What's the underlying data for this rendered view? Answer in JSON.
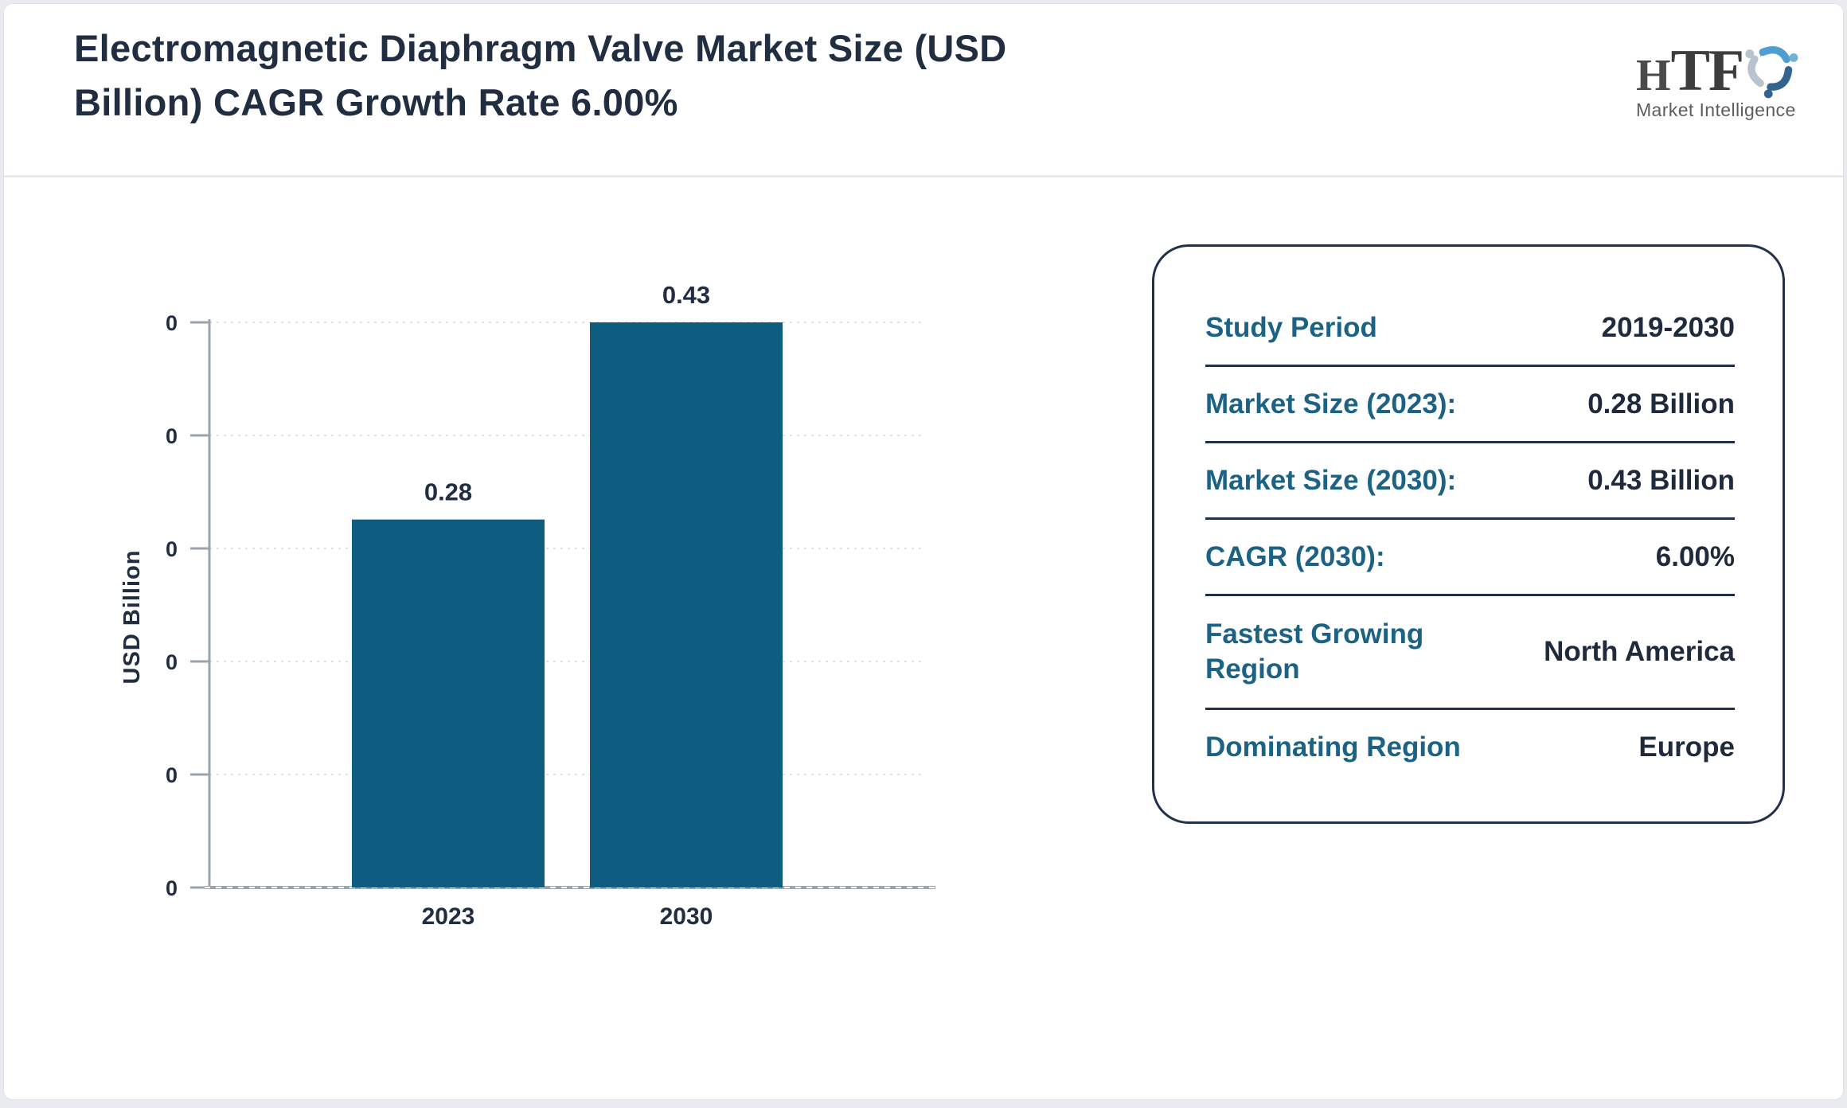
{
  "header": {
    "title": "Electromagnetic Diaphragm Valve Market Size (USD Billion) CAGR Growth Rate 6.00%"
  },
  "logo": {
    "wordmark_h": "H",
    "wordmark_tf": "TF",
    "tagline": "Market Intelligence",
    "swirl_colors": [
      "#4d9fd1",
      "#33638e",
      "#b9c3cd"
    ]
  },
  "chart_data": {
    "type": "bar",
    "title": "",
    "categories": [
      "2023",
      "2030"
    ],
    "values": [
      0.28,
      0.43
    ],
    "bar_value_labels": [
      "0.28",
      "0.43"
    ],
    "xlabel": "",
    "ylabel": "USD Billion",
    "ylim": [
      0,
      0.43
    ],
    "ytick_labels": [
      "0",
      "0",
      "0",
      "0",
      "0",
      "0"
    ],
    "grid": "horizontal-dashed",
    "legend": "none",
    "bar_color": "#0e5c80",
    "axis_color": "#9ba4ad",
    "grid_color": "#dfe1e4",
    "label_color": "#212d40"
  },
  "summary_panel": {
    "rows": [
      {
        "label": "Study Period",
        "value": "2019-2030"
      },
      {
        "label": "Market Size (2023):",
        "value": "0.28 Billion"
      },
      {
        "label": "Market Size (2030):",
        "value": "0.43 Billion"
      },
      {
        "label": "CAGR (2030):",
        "value": "6.00%"
      },
      {
        "label": "Fastest Growing Region",
        "value": "North America"
      },
      {
        "label": "Dominating Region",
        "value": "Europe"
      }
    ]
  }
}
